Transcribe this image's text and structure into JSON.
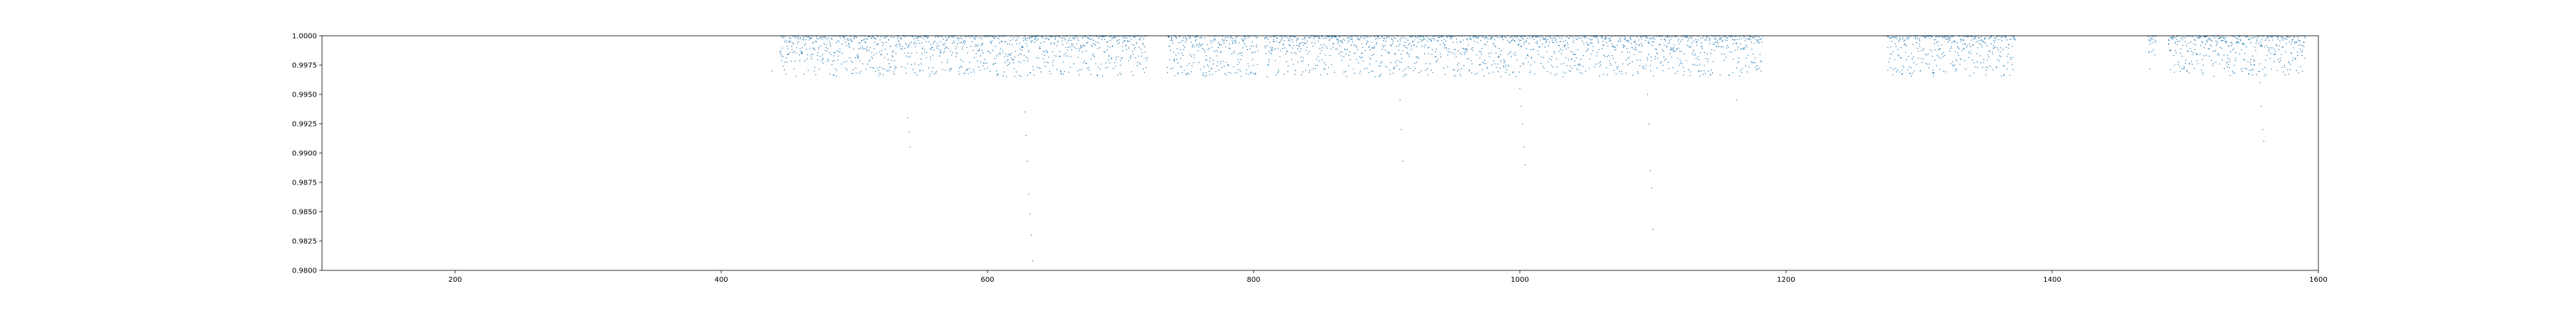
{
  "chart_data": {
    "type": "scatter",
    "title": "",
    "xlabel": "",
    "ylabel": "",
    "xlim": [
      100,
      1600
    ],
    "ylim": [
      0.98,
      1.0
    ],
    "grid": false,
    "legend": "none",
    "x_ticks": [
      200,
      400,
      600,
      800,
      1000,
      1200,
      1400,
      1600
    ],
    "x_tick_labels": [
      "200",
      "400",
      "600",
      "800",
      "1000",
      "1200",
      "1400",
      "1600"
    ],
    "y_ticks": [
      0.98,
      0.9825,
      0.985,
      0.9875,
      0.99,
      0.9925,
      0.995,
      0.9975,
      1.0
    ],
    "y_tick_labels": [
      "0.9800",
      "0.9825",
      "0.9850",
      "0.9875",
      "0.9900",
      "0.9925",
      "0.9950",
      "0.9975",
      "1.0000"
    ],
    "series_color": "#1f77b4",
    "series": [
      {
        "observing_segments": [
          [
            444,
            720
          ],
          [
            735,
            803
          ],
          [
            808,
            1182
          ],
          [
            1276,
            1372
          ],
          [
            1472,
            1478
          ],
          [
            1487,
            1590
          ]
        ],
        "typical_flux_range": [
          0.9965,
          1.0
        ],
        "points": [
          [
            438,
            0.997
          ],
          [
            539,
            0.9968
          ],
          [
            540,
            0.993
          ],
          [
            541,
            0.9918
          ],
          [
            542,
            0.9905
          ],
          [
            628,
            0.9935
          ],
          [
            629,
            0.9915
          ],
          [
            630,
            0.9893
          ],
          [
            631,
            0.9865
          ],
          [
            632,
            0.9848
          ],
          [
            633,
            0.983
          ],
          [
            634,
            0.9808
          ],
          [
            910,
            0.9945
          ],
          [
            911,
            0.992
          ],
          [
            912,
            0.9893
          ],
          [
            1000,
            0.9955
          ],
          [
            1001,
            0.994
          ],
          [
            1002,
            0.9925
          ],
          [
            1003,
            0.9905
          ],
          [
            1004,
            0.989
          ],
          [
            1096,
            0.995
          ],
          [
            1097,
            0.9925
          ],
          [
            1098,
            0.9885
          ],
          [
            1099,
            0.987
          ],
          [
            1100,
            0.9835
          ],
          [
            1163,
            0.9945
          ],
          [
            1556,
            0.996
          ],
          [
            1557,
            0.994
          ],
          [
            1558,
            0.992
          ],
          [
            1559,
            0.991
          ]
        ]
      }
    ]
  }
}
